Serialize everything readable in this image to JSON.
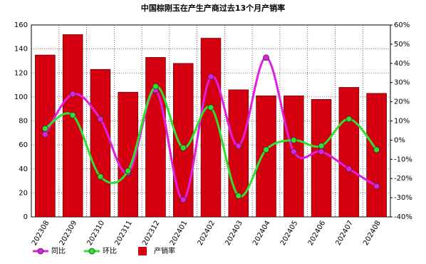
{
  "chart_data": {
    "type": "bar_line",
    "title": "中国棕刚玉在产生产商过去13个月产销率",
    "categories": [
      "202308",
      "202309",
      "202310",
      "202311",
      "202312",
      "202401",
      "202402",
      "202403",
      "202404",
      "202405",
      "202406",
      "202407",
      "202408"
    ],
    "series": [
      {
        "name": "同比",
        "color": "#e020e0",
        "type": "line",
        "axis": "y2",
        "values": [
          3,
          24,
          11,
          -17,
          26,
          -31,
          33,
          -3,
          43,
          -6,
          -6,
          -15,
          -24
        ]
      },
      {
        "name": "环比",
        "color": "#30e030",
        "type": "line",
        "axis": "y2",
        "values": [
          6,
          13,
          -19,
          -16,
          28,
          -4,
          17,
          -29,
          -5,
          0,
          -3,
          11,
          -5
        ]
      },
      {
        "name": "产销率",
        "color": "#d40010",
        "type": "bar",
        "values": [
          135,
          152,
          123,
          104,
          133,
          128,
          149,
          106,
          101,
          101,
          98,
          108,
          103
        ]
      }
    ],
    "ylim": [
      0,
      160
    ],
    "yticks": [
      0,
      20,
      40,
      60,
      80,
      100,
      120,
      140,
      160
    ],
    "y2lim": [
      -40,
      60
    ],
    "y2ticks": [
      {
        "value": -40,
        "label": "-40%"
      },
      {
        "value": -30,
        "label": "-30%"
      },
      {
        "value": -20,
        "label": "-20%"
      },
      {
        "value": -10,
        "label": "-10%"
      },
      {
        "value": 0,
        "label": "0%"
      },
      {
        "value": 10,
        "label": "10%"
      },
      {
        "value": 20,
        "label": "20%"
      },
      {
        "value": 30,
        "label": "30%"
      },
      {
        "value": 40,
        "label": "40%"
      },
      {
        "value": 50,
        "label": "50%"
      },
      {
        "value": 60,
        "label": "60%"
      }
    ],
    "grid": true
  }
}
